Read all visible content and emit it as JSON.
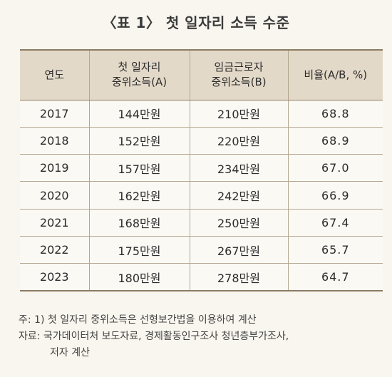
{
  "title": "〈표 1〉 첫 일자리 소득 수준",
  "table": {
    "headers": [
      [
        "연도"
      ],
      [
        "첫 일자리",
        "중위소득(A)"
      ],
      [
        "임금근로자",
        "중위소득(B)"
      ],
      [
        "비율(A/B, %)"
      ]
    ],
    "rows": [
      [
        "2017",
        "144만원",
        "210만원",
        "68.8"
      ],
      [
        "2018",
        "152만원",
        "220만원",
        "68.9"
      ],
      [
        "2019",
        "157만원",
        "234만원",
        "67.0"
      ],
      [
        "2020",
        "162만원",
        "242만원",
        "66.9"
      ],
      [
        "2021",
        "168만원",
        "250만원",
        "67.4"
      ],
      [
        "2022",
        "175만원",
        "267만원",
        "65.7"
      ],
      [
        "2023",
        "180만원",
        "278만원",
        "64.7"
      ]
    ]
  },
  "notes": {
    "note": "주: 1) 첫 일자리 중위소득은 선형보간법을 이용하여 계산",
    "source_line1": "자료: 국가데이터처 보도자료, 경제활동인구조사 청년층부가조사,",
    "source_line2": "저자 계산"
  }
}
